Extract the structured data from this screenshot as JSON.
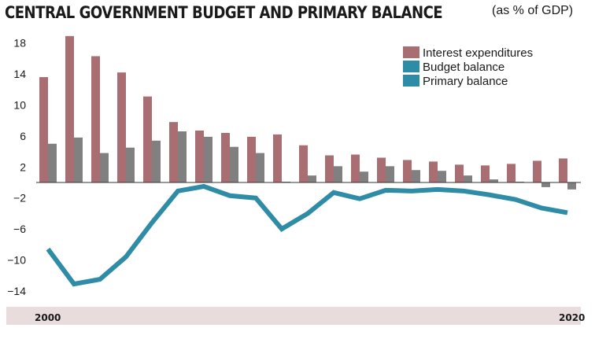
{
  "title": "CENTRAL GOVERNMENT BUDGET AND PRIMARY BALANCE",
  "subtitle": "(as % of GDP)",
  "colors": {
    "interest": "#a86e72",
    "budget": "#808080",
    "primary": "#2f8ca6",
    "legend_budget": "#2f8ca6",
    "axis_band": "#e8dcdc"
  },
  "chart_data": {
    "type": "bar",
    "title": "CENTRAL GOVERNMENT BUDGET AND PRIMARY BALANCE",
    "subtitle": "(as % of GDP)",
    "x": [
      2000,
      2001,
      2002,
      2003,
      2004,
      2005,
      2006,
      2007,
      2008,
      2009,
      2010,
      2011,
      2012,
      2013,
      2014,
      2015,
      2016,
      2017,
      2018,
      2019,
      2020
    ],
    "x_tick_labels": [
      "2000",
      "2020"
    ],
    "y_ticks": [
      18,
      14,
      10,
      6,
      2,
      -2,
      -6,
      -10,
      -14
    ],
    "ylim": [
      -15.5,
      19.5
    ],
    "series": [
      {
        "name": "Interest expenditures",
        "type": "bar",
        "values": [
          13.6,
          18.9,
          16.3,
          14.2,
          11.1,
          7.8,
          6.7,
          6.4,
          5.9,
          6.2,
          4.8,
          3.5,
          3.6,
          3.2,
          2.9,
          2.7,
          2.3,
          2.2,
          2.4,
          2.8,
          3.1
        ]
      },
      {
        "name": "Budget balance",
        "type": "bar",
        "values": [
          5.0,
          5.8,
          3.8,
          4.5,
          5.4,
          6.6,
          5.9,
          4.6,
          3.8,
          0.1,
          0.9,
          2.1,
          1.4,
          2.1,
          1.6,
          1.5,
          0.9,
          0.4,
          0.1,
          -0.6,
          -0.9
        ]
      },
      {
        "name": "Primary balance",
        "type": "line",
        "values": [
          -8.6,
          -13.1,
          -12.5,
          -9.6,
          -5.2,
          -1.1,
          -0.5,
          -1.7,
          -2.0,
          -6.0,
          -4.0,
          -1.3,
          -2.1,
          -1.0,
          -1.1,
          -0.9,
          -1.1,
          -1.6,
          -2.2,
          -3.3,
          -3.9
        ]
      }
    ],
    "legend": [
      "Interest expenditures",
      "Budget balance",
      "Primary balance"
    ],
    "legend_position": "top-right",
    "grid": false
  }
}
